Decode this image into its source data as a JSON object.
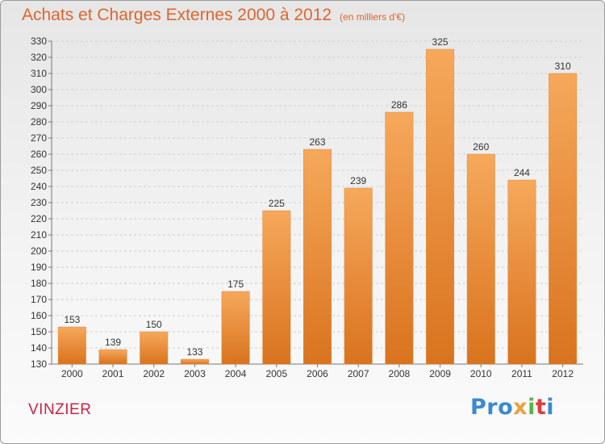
{
  "title": "Achats et Charges Externes 2000 à 2012",
  "subtitle": "(en milliers d'€)",
  "city": "VINZIER",
  "logo": {
    "text": "Proxiti",
    "parts": [
      "Pro",
      "x",
      "i",
      "t",
      "i"
    ]
  },
  "colors": {
    "bar_top": "#f6a85b",
    "bar_bottom": "#d9731e",
    "title": "#e0652c",
    "city": "#cc2244"
  },
  "chart_data": {
    "type": "bar",
    "title": "Achats et Charges Externes 2000 à 2012",
    "subtitle": "(en milliers d'€)",
    "categories": [
      "2000",
      "2001",
      "2002",
      "2003",
      "2004",
      "2005",
      "2006",
      "2007",
      "2008",
      "2009",
      "2010",
      "2011",
      "2012"
    ],
    "values": [
      153,
      139,
      150,
      133,
      175,
      225,
      263,
      239,
      286,
      325,
      260,
      244,
      310
    ],
    "ylim": [
      130,
      330
    ],
    "ytick_step": 10,
    "grid": true,
    "xlabel": "",
    "ylabel": ""
  }
}
